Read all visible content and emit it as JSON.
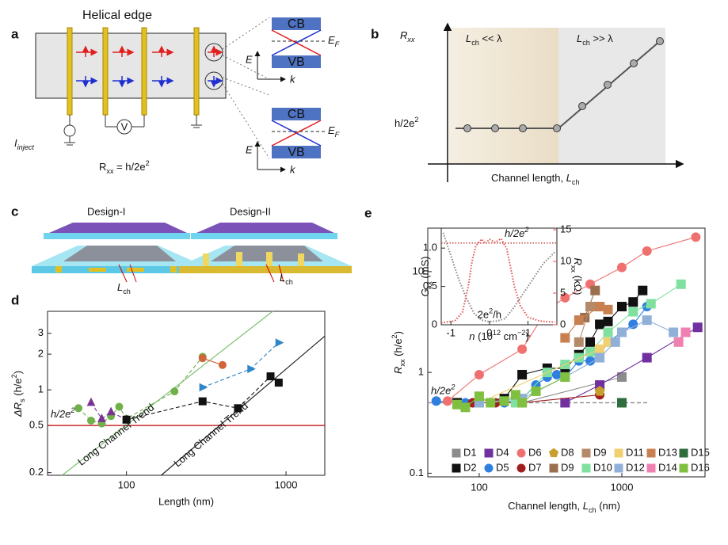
{
  "panel_a": {
    "label": "a",
    "title": "Helical edge",
    "bands": [
      "CB",
      "VB"
    ],
    "axis_e": "E",
    "axis_k": "k",
    "ef": [
      "E",
      "F"
    ],
    "inject": [
      "I",
      "inject"
    ],
    "voltmeter": "V",
    "rxx": [
      "R",
      "xx",
      " = h/2e",
      "2"
    ]
  },
  "panel_b": {
    "label": "b",
    "ylabel": [
      "R",
      "xx"
    ],
    "short": [
      "L",
      "ch",
      " << ",
      "λ"
    ],
    "long": [
      "L",
      "ch",
      " >> ",
      "λ"
    ],
    "quantum": [
      "h/2e",
      "2"
    ],
    "xlabel": [
      "Channel length, ",
      "L",
      "ch"
    ]
  },
  "panel_c": {
    "label": "c",
    "designs": [
      "Design-I",
      "Design-II"
    ],
    "lch": [
      "L",
      "ch"
    ]
  },
  "chart_data": [
    {
      "panel_label": "d",
      "type": "scatter",
      "xlabel": "Length (nm)",
      "ylabel": [
        "ΔR",
        "s",
        " (h/e",
        "2",
        ")"
      ],
      "xscale": "log",
      "yscale": "log",
      "xlim": [
        32,
        1750
      ],
      "ylim": [
        0.19,
        4.6
      ],
      "xticks": [
        100,
        1000
      ],
      "yticks": [
        0.2,
        0.5,
        1,
        2,
        3
      ],
      "hline": {
        "y": 0.5,
        "color": "#c00000",
        "style": "solid",
        "label": [
          "h/2e",
          "2"
        ]
      },
      "trends": [
        {
          "label": "Long Channel Trend",
          "color": "#7cc070",
          "x": [
            39.5,
            825
          ],
          "y": [
            0.19,
            4.6
          ]
        },
        {
          "label": "Long Channel Trend",
          "color": "#222222",
          "x": [
            165,
            1750
          ],
          "y": [
            0.19,
            2.84
          ]
        }
      ],
      "series": [
        {
          "color": "#6fb04a",
          "marker": "circle",
          "linestyle": "dashed",
          "x": [
            50,
            60,
            70,
            80,
            90,
            100,
            200,
            300
          ],
          "values": [
            0.7,
            0.55,
            0.52,
            0.6,
            0.72,
            0.57,
            0.97,
            1.9
          ]
        },
        {
          "color": "#7b3294",
          "marker": "triangle-up",
          "linestyle": "dashed",
          "x": [
            60,
            70,
            80,
            100
          ],
          "values": [
            0.78,
            0.57,
            0.65,
            0.56
          ]
        },
        {
          "color": "#d0643a",
          "marker": "circle",
          "linestyle": "solid",
          "x": [
            300,
            400
          ],
          "values": [
            1.85,
            1.62
          ]
        },
        {
          "color": "#2e86c8",
          "marker": "triangle-right",
          "linestyle": "dashed",
          "x": [
            300,
            600,
            900
          ],
          "values": [
            1.05,
            1.5,
            2.5
          ]
        },
        {
          "color": "#111111",
          "marker": "square",
          "linestyle": "dashed",
          "x": [
            100,
            300,
            500,
            800,
            900
          ],
          "values": [
            0.56,
            0.8,
            0.7,
            1.3,
            1.15
          ]
        }
      ]
    },
    {
      "panel_label": "e",
      "type": "scatter",
      "xlabel": [
        "Channel length, ",
        "L",
        "ch",
        " (nm)"
      ],
      "ylabel": [
        "R",
        "xx",
        " (h/e",
        "2",
        ")"
      ],
      "xscale": "log",
      "yscale": "log",
      "xlim": [
        43.6,
        3830
      ],
      "ylim": [
        0.092,
        27
      ],
      "xticks": [
        100,
        1000
      ],
      "yticks": [
        0.1,
        1,
        10
      ],
      "hline": {
        "y": 0.5,
        "x": [
          43.6,
          1560
        ],
        "color": "#888888",
        "style": "dashed",
        "label": [
          "h/2e",
          "2"
        ]
      },
      "legend": "bottom",
      "series": [
        {
          "name": "D1",
          "color": "#8c8c8c",
          "marker": "square",
          "linestyle": "solid",
          "x": [
            70,
            200,
            1000
          ],
          "values": [
            0.5,
            0.5,
            0.9
          ]
        },
        {
          "name": "D2",
          "color": "#111111",
          "marker": "square",
          "linestyle": "solid",
          "x": [
            70,
            150,
            200,
            300,
            400,
            500,
            600,
            700,
            800,
            1000,
            1200,
            1400
          ],
          "values": [
            0.5,
            0.55,
            0.95,
            1.1,
            1.1,
            1.5,
            2.0,
            3.0,
            3.2,
            4.5,
            5.0,
            6.5
          ]
        },
        {
          "name": "D4",
          "color": "#7030a0",
          "marker": "square",
          "linestyle": "solid",
          "x": [
            400,
            700,
            1500,
            3400
          ],
          "values": [
            0.5,
            0.75,
            1.4,
            2.8
          ]
        },
        {
          "name": "D5",
          "color": "#2f7fe0",
          "marker": "circle",
          "linestyle": "solid",
          "x": [
            50,
            80,
            100,
            150,
            200,
            250,
            300,
            350,
            400,
            500,
            600,
            700,
            800,
            1000,
            1200,
            1500
          ],
          "values": [
            0.52,
            0.5,
            0.5,
            0.5,
            0.55,
            0.75,
            0.9,
            0.95,
            0.9,
            1.3,
            1.3,
            1.5,
            2.0,
            2.5,
            3.0,
            4.5
          ]
        },
        {
          "name": "D6",
          "color": "#f07070",
          "marker": "circle",
          "linestyle": "solid",
          "x": [
            60,
            100,
            200,
            300,
            400,
            600,
            1000,
            1500,
            3300
          ],
          "values": [
            0.52,
            0.95,
            1.7,
            4.2,
            5.5,
            7.5,
            11,
            16,
            22
          ]
        },
        {
          "name": "D7",
          "color": "#a02020",
          "marker": "circle",
          "linestyle": "solid",
          "x": [
            90,
            130,
            200,
            700
          ],
          "values": [
            0.5,
            0.5,
            0.5,
            0.6
          ]
        },
        {
          "name": "D8",
          "color": "#c8a030",
          "marker": "pentagon",
          "linestyle": "solid",
          "x": [
            700
          ],
          "values": [
            0.65
          ]
        },
        {
          "name": "D9",
          "color": "#9b6e4e",
          "marker": "square",
          "linestyle": "solid",
          "x": [
            550,
            650
          ],
          "values": [
            3.5,
            6.5
          ]
        },
        {
          "name": "D9",
          "color": "#b58a6a",
          "marker": "square",
          "linestyle": "solid",
          "x": [
            500,
            600,
            700
          ],
          "values": [
            2.0,
            4.5,
            4.5
          ]
        },
        {
          "name": "D10",
          "color": "#80e0a0",
          "marker": "square",
          "linestyle": "solid",
          "x": [
            180,
            200,
            300,
            400,
            500,
            600,
            800,
            1200,
            1600,
            2600
          ],
          "values": [
            0.5,
            0.55,
            1.0,
            1.2,
            1.4,
            1.6,
            2.5,
            4.0,
            4.8,
            7.5
          ]
        },
        {
          "name": "D11",
          "color": "#f0d070",
          "marker": "square",
          "linestyle": "solid",
          "x": [
            100,
            700,
            800
          ],
          "values": [
            0.5,
            1.7,
            2.0
          ]
        },
        {
          "name": "D12",
          "color": "#90b0d8",
          "marker": "square",
          "linestyle": "solid",
          "x": [
            100,
            200,
            400,
            700,
            900,
            1000,
            1500,
            2300
          ],
          "values": [
            0.5,
            0.55,
            0.9,
            1.4,
            2.0,
            2.5,
            3.3,
            2.5
          ]
        },
        {
          "name": "D13",
          "color": "#c88050",
          "marker": "square",
          "linestyle": "solid",
          "x": [
            400,
            500,
            700,
            800
          ],
          "values": [
            2.2,
            3.3,
            4.5,
            4.2
          ]
        },
        {
          "name": "D14",
          "color": "#f080b0",
          "marker": "square",
          "linestyle": "solid",
          "x": [
            2500,
            2800
          ],
          "values": [
            2.0,
            2.5
          ]
        },
        {
          "name": "D15",
          "color": "#2e6e3e",
          "marker": "square",
          "linestyle": "solid",
          "x": [
            1000
          ],
          "values": [
            0.5
          ]
        },
        {
          "name": "D16",
          "color": "#80c040",
          "marker": "square",
          "linestyle": "solid",
          "x": [
            70,
            80,
            100,
            120,
            150,
            180,
            200,
            250,
            400
          ],
          "values": [
            0.48,
            0.45,
            0.58,
            0.5,
            0.52,
            0.6,
            0.5,
            0.65,
            0.9
          ]
        }
      ]
    },
    {
      "type": "line",
      "xlabel": [
        "n",
        " (10",
        "12",
        " cm",
        "−2",
        ")"
      ],
      "ylabel": [
        "G",
        "xx",
        " (mS)"
      ],
      "y2label": [
        "R",
        "xx",
        " (kΩ)"
      ],
      "xlim": [
        -1.25,
        1.75
      ],
      "ylim": [
        0,
        1.26
      ],
      "y2lim": [
        0,
        15.25
      ],
      "xticks": [
        -1,
        0,
        1
      ],
      "yticks": [
        0,
        0.5,
        {
          "value": 1,
          "label": "1.0"
        }
      ],
      "y2ticks": [
        0,
        5,
        10,
        15
      ],
      "y2color": "#e05050",
      "hline": {
        "y": 12.9,
        "axis": "y2",
        "color": "#c03030",
        "style": "dotted",
        "label": [
          "h/2e",
          "2"
        ]
      },
      "annotation": [
        "2e",
        "2",
        "/h"
      ],
      "series": [
        {
          "color": "#888888",
          "linestyle": "dotted",
          "x": [
            -1.2,
            -1.0,
            -0.8,
            -0.6,
            -0.4,
            -0.2,
            0,
            0.2,
            0.4,
            0.6,
            0.8,
            1.0,
            1.2,
            1.4,
            1.7
          ],
          "values": [
            1.2,
            0.9,
            0.6,
            0.35,
            0.15,
            0.06,
            0.04,
            0.05,
            0.08,
            0.2,
            0.35,
            0.5,
            0.65,
            0.8,
            0.95
          ]
        },
        {
          "color": "#e05050",
          "linestyle": "dotted",
          "axis": "y2",
          "x": [
            -1.25,
            -0.9,
            -0.7,
            -0.55,
            -0.45,
            -0.35,
            -0.2,
            -0.1,
            0,
            0.15,
            0.3,
            0.45,
            0.55,
            0.65,
            0.8,
            1.0,
            1.3,
            1.7
          ],
          "values": [
            0.3,
            0.6,
            2,
            6,
            10,
            12.5,
            13.5,
            12.8,
            13.5,
            13,
            13.6,
            12,
            9,
            6,
            3,
            1.2,
            0.6,
            0.4
          ]
        }
      ]
    }
  ]
}
